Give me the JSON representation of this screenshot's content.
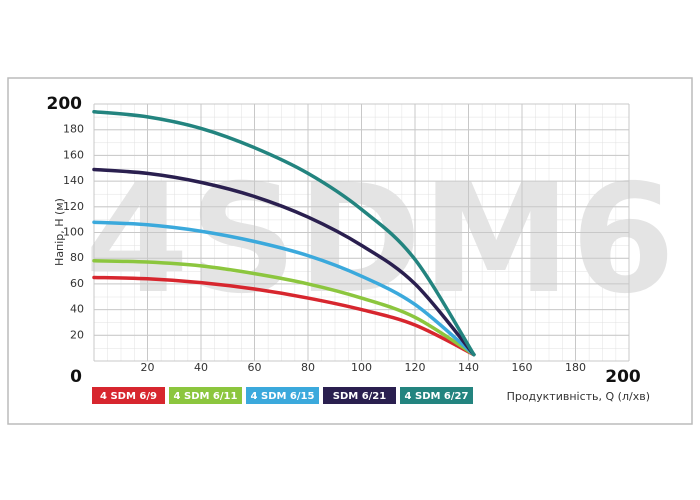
{
  "chart_data": {
    "type": "line",
    "watermark": "4SDM6",
    "x_label": "Продуктивність, Q (л/хв)",
    "y_label": "Напір, H (м)",
    "x": [
      0,
      20,
      40,
      60,
      80,
      100,
      120,
      142
    ],
    "series": [
      {
        "name": "4 SDM 6/9",
        "color": "#d7262e",
        "values": [
          65,
          64,
          61,
          56,
          49,
          40,
          28,
          5
        ]
      },
      {
        "name": "4 SDM 6/11",
        "color": "#8cc63e",
        "values": [
          78,
          77,
          74,
          68,
          60,
          49,
          34,
          5
        ]
      },
      {
        "name": "4 SDM 6/15",
        "color": "#3ba9dc",
        "values": [
          108,
          106,
          101,
          93,
          82,
          66,
          44,
          5
        ]
      },
      {
        "name": "SDM 6/21",
        "color": "#2a1f4f",
        "values": [
          149,
          146,
          139,
          128,
          112,
          90,
          60,
          5
        ]
      },
      {
        "name": "4 SDM 6/27",
        "color": "#23847f",
        "values": [
          194,
          190,
          181,
          166,
          146,
          118,
          79,
          5
        ]
      }
    ],
    "xlim": [
      0,
      200
    ],
    "xticks": [
      0,
      20,
      40,
      60,
      80,
      100,
      120,
      140,
      160,
      180,
      200
    ],
    "ylim": [
      0,
      200
    ],
    "yticks": [
      0,
      20,
      40,
      60,
      80,
      100,
      120,
      140,
      160,
      180,
      200
    ],
    "grid": true
  }
}
